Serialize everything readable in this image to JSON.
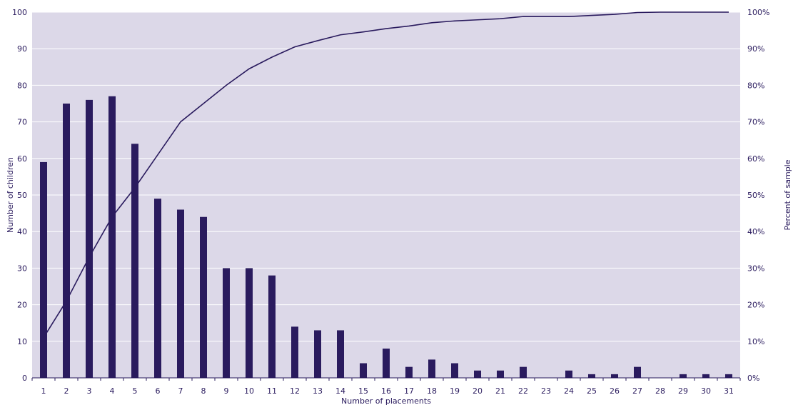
{
  "chart_data": {
    "type": "bar",
    "xlabel": "Number of placements",
    "ylabel": "Number of children",
    "y2label": "Percent of sample",
    "categories": [
      "1",
      "2",
      "3",
      "4",
      "5",
      "6",
      "7",
      "8",
      "9",
      "10",
      "11",
      "12",
      "13",
      "14",
      "15",
      "16",
      "17",
      "18",
      "19",
      "20",
      "21",
      "22",
      "23",
      "24",
      "25",
      "26",
      "27",
      "28",
      "29",
      "30",
      "31"
    ],
    "series": [
      {
        "type": "bar",
        "axis": "left",
        "values": [
          59,
          75,
          76,
          77,
          64,
          49,
          46,
          44,
          30,
          30,
          28,
          14,
          13,
          13,
          4,
          8,
          3,
          5,
          4,
          2,
          2,
          3,
          0,
          2,
          1,
          1,
          3,
          0,
          1,
          1,
          1
        ]
      },
      {
        "type": "line",
        "axis": "right",
        "values": [
          11,
          21,
          33,
          44,
          52,
          61,
          70,
          75,
          80,
          84.5,
          87.7,
          90.5,
          92.2,
          93.8,
          94.6,
          95.5,
          96.2,
          97.1,
          97.6,
          97.9,
          98.2,
          98.8,
          98.8,
          98.8,
          99.1,
          99.4,
          99.9,
          100,
          100,
          100,
          100
        ]
      }
    ],
    "ylim": [
      0,
      100
    ],
    "y2lim": [
      0,
      100
    ],
    "yticks": [
      "0",
      "10",
      "20",
      "30",
      "40",
      "50",
      "60",
      "70",
      "80",
      "90",
      "100"
    ],
    "y2ticks": [
      "0%",
      "10%",
      "20%",
      "30%",
      "40%",
      "50%",
      "60%",
      "70%",
      "80%",
      "90%",
      "100%"
    ],
    "grid": true,
    "colors": {
      "plot_background": "#dcd8e8",
      "gridline": "#ffffff",
      "bar": "#2a1b5e",
      "line": "#2a1b5e",
      "text": "#2a1b5e"
    }
  }
}
